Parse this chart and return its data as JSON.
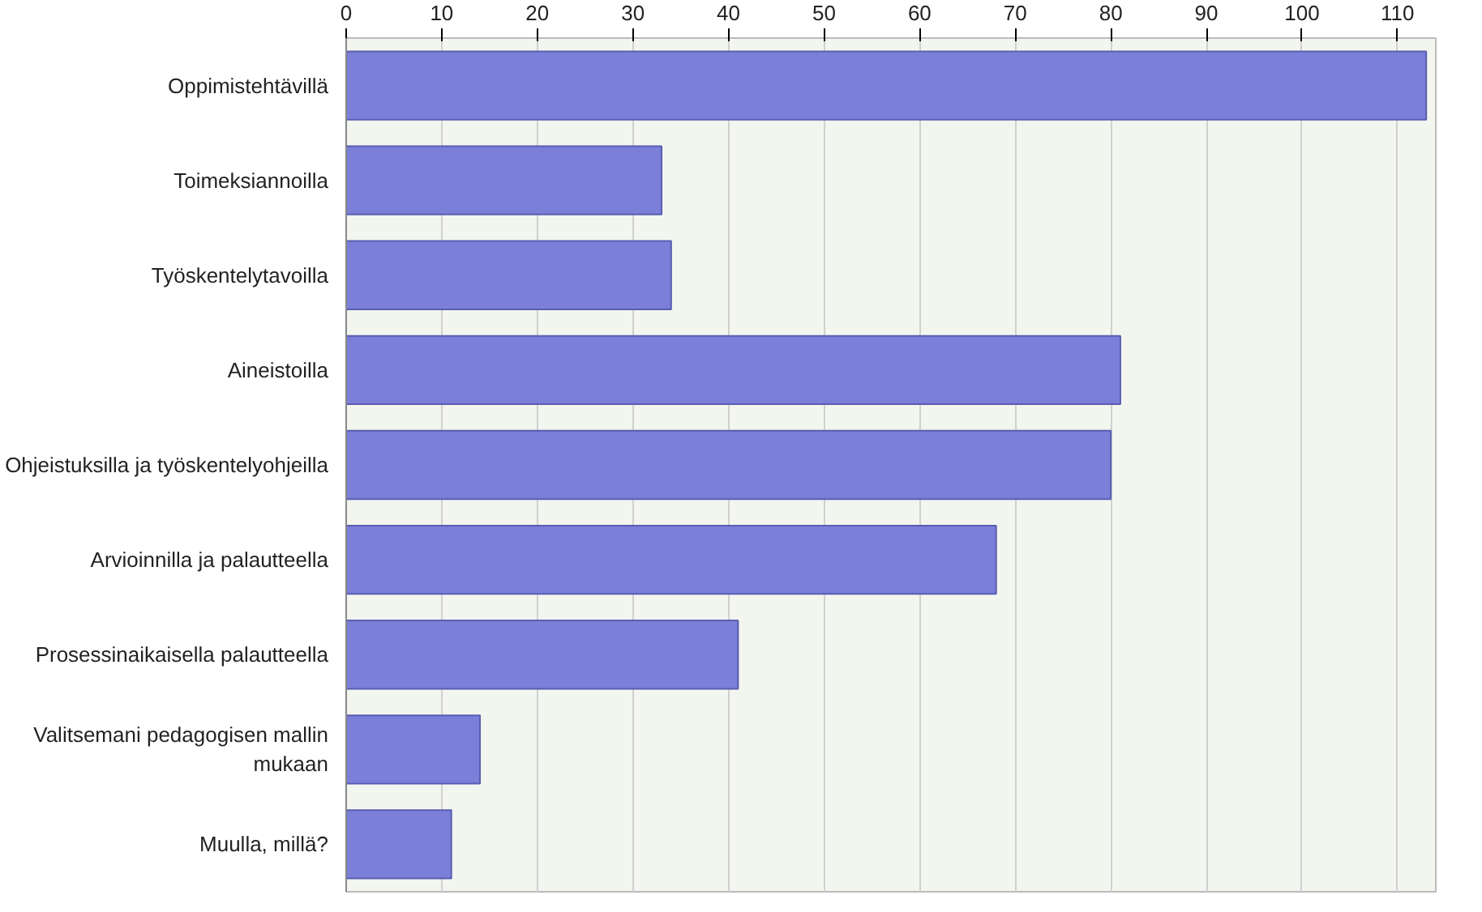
{
  "chart_data": {
    "type": "bar",
    "orientation": "horizontal",
    "categories": [
      "Oppimistehtävillä",
      "Toimeksiannoilla",
      "Työskentelytavoilla",
      "Aineistoilla",
      "Ohjeistuksilla ja työskentelyohjeilla",
      "Arvioinnilla ja palautteella",
      "Prosessinaikaisella palautteella",
      "Valitsemani pedagogisen mallin\nmukaan",
      "Muulla, millä?"
    ],
    "values": [
      113,
      33,
      34,
      81,
      80,
      68,
      41,
      14,
      11
    ],
    "color": "#7b7fd8",
    "xlim": [
      0,
      114
    ],
    "xticks": [
      0,
      10,
      20,
      30,
      40,
      50,
      60,
      70,
      80,
      90,
      100,
      110
    ],
    "grid": "x"
  }
}
